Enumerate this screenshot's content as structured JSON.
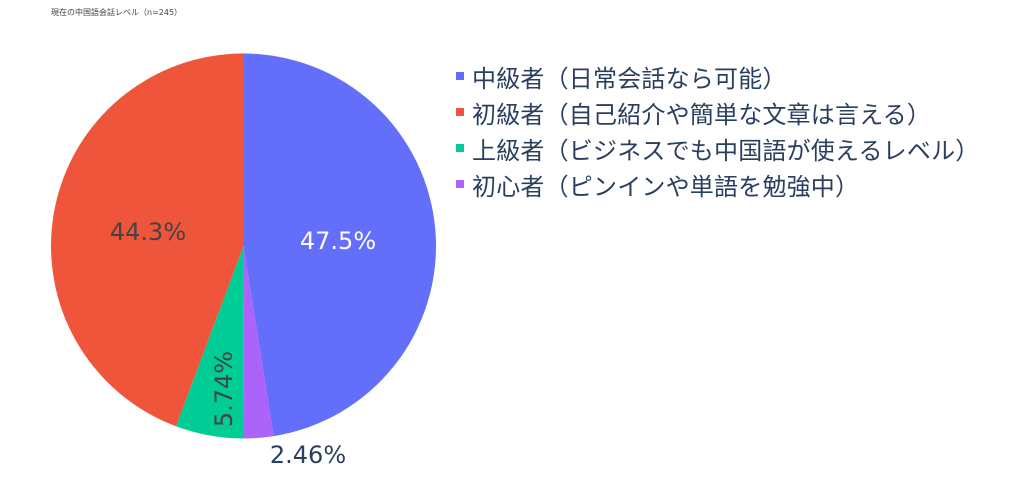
{
  "title": "現在の中国語会話レベル（n=245）",
  "chart_data": {
    "type": "pie",
    "title": "現在の中国語会話レベル（n=245）",
    "categories": [
      "中級者（日常会話なら可能）",
      "初心者（ピンインや単語を勉強中）",
      "上級者（ビジネスでも中国語が使えるレベル）",
      "初級者（自己紹介や簡単な文章は言える）"
    ],
    "values": [
      47.5,
      2.46,
      5.74,
      44.3
    ],
    "labels_text": [
      "47.5%",
      "2.46%",
      "5.74%",
      "44.3%"
    ],
    "colors": [
      "#636efa",
      "#ab63fa",
      "#00cc96",
      "#ef553b"
    ],
    "direction": "clockwise",
    "rotation": 0,
    "legend_position": "right"
  },
  "legend": {
    "items": [
      {
        "label": "中級者（日常会話なら可能）",
        "color": "#636efa"
      },
      {
        "label": "初級者（自己紹介や簡単な文章は言える）",
        "color": "#ef553b"
      },
      {
        "label": "上級者（ビジネスでも中国語が使えるレベル）",
        "color": "#00cc96"
      },
      {
        "label": "初心者（ピンインや単語を勉強中）",
        "color": "#ab63fa"
      }
    ]
  }
}
